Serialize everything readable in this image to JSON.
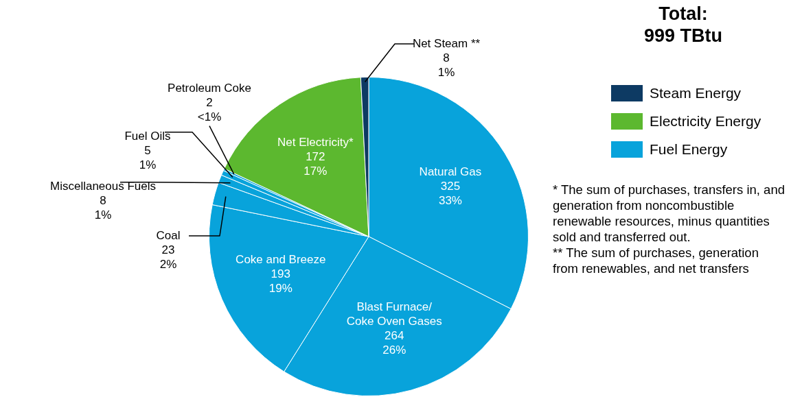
{
  "chart_data": {
    "type": "pie",
    "title": "Total:\n999 TBtu",
    "categories": [
      "Natural Gas",
      "Blast Furnace/\nCoke Oven Gases",
      "Coke and Breeze",
      "Coal",
      "Miscellaneous Fuels",
      "Fuel Oils",
      "Petroleum Coke",
      "Net Electricity*",
      "Net Steam **"
    ],
    "values": [
      325,
      264,
      193,
      23,
      8,
      5,
      2,
      172,
      8
    ],
    "colors": [
      "#08a3db",
      "#08a3db",
      "#08a3db",
      "#08a3db",
      "#08a3db",
      "#08a3db",
      "#08a3db",
      "#5cb82f",
      "#0d3a63"
    ],
    "value_labels": [
      "325\n33%",
      "264\n26%",
      "193\n19%",
      "23\n2%",
      "8\n1%",
      "5\n1%",
      "2\n<1%",
      "172\n17%",
      "8\n1%"
    ],
    "annotations": [
      "Steam Energy",
      "Electricity Energy",
      "Fuel Energy",
      "* The sum of purchases, transfers in, and generation from noncombustible renewable resources, minus quantities sold and transferred out.",
      "** The sum of purchases, generation from renewables, and net transfers"
    ]
  }
}
